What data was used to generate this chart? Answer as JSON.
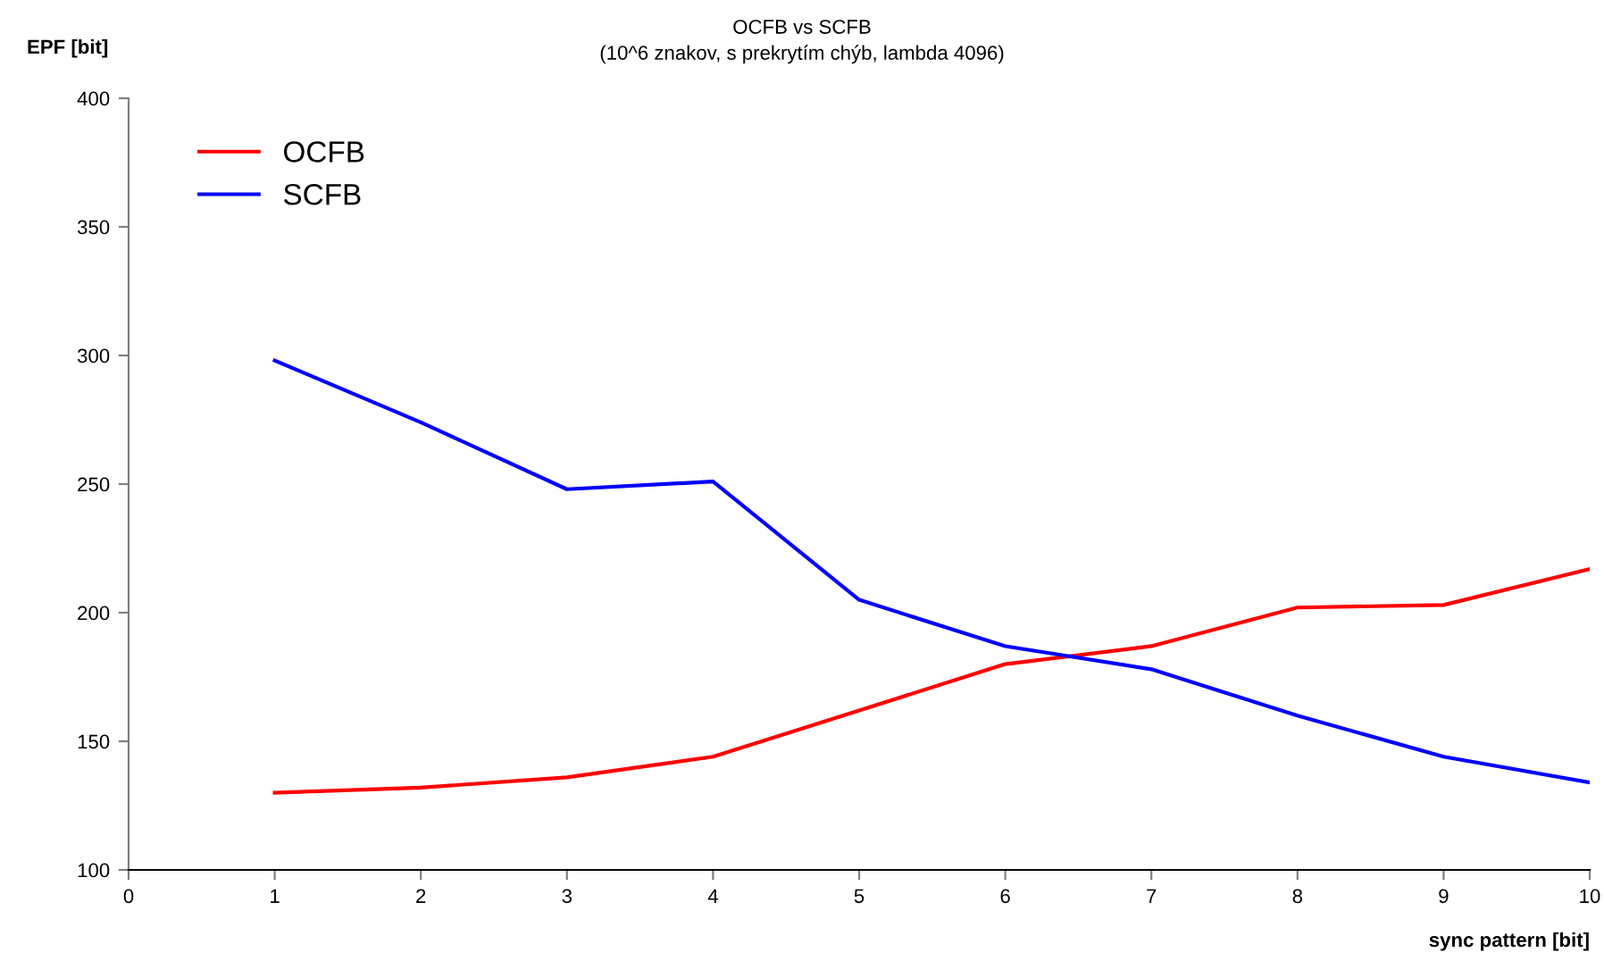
{
  "chart_data": {
    "type": "line",
    "title": "OCFB vs SCFB",
    "subtitle": "(10^6 znakov, s prekrytím chýb, lambda 4096)",
    "xlabel": "sync pattern [bit]",
    "ylabel": "EPF [bit]",
    "x": [
      1,
      2,
      3,
      4,
      5,
      6,
      7,
      8,
      9,
      10
    ],
    "series": [
      {
        "name": "OCFB",
        "color": "#ff0000",
        "values": [
          130,
          132,
          136,
          144,
          162,
          180,
          187,
          202,
          203,
          217
        ]
      },
      {
        "name": "SCFB",
        "color": "#0000ff",
        "values": [
          298,
          274,
          248,
          251,
          205,
          187,
          178,
          160,
          144,
          134
        ]
      }
    ],
    "xlim": [
      0,
      10
    ],
    "xticks": [
      0,
      1,
      2,
      3,
      4,
      5,
      6,
      7,
      8,
      9,
      10
    ],
    "ylim": [
      100,
      400
    ],
    "yticks": [
      100,
      150,
      200,
      250,
      300,
      350,
      400
    ],
    "grid": false,
    "legend": "top left",
    "marker": "none",
    "line_style": "solid"
  }
}
